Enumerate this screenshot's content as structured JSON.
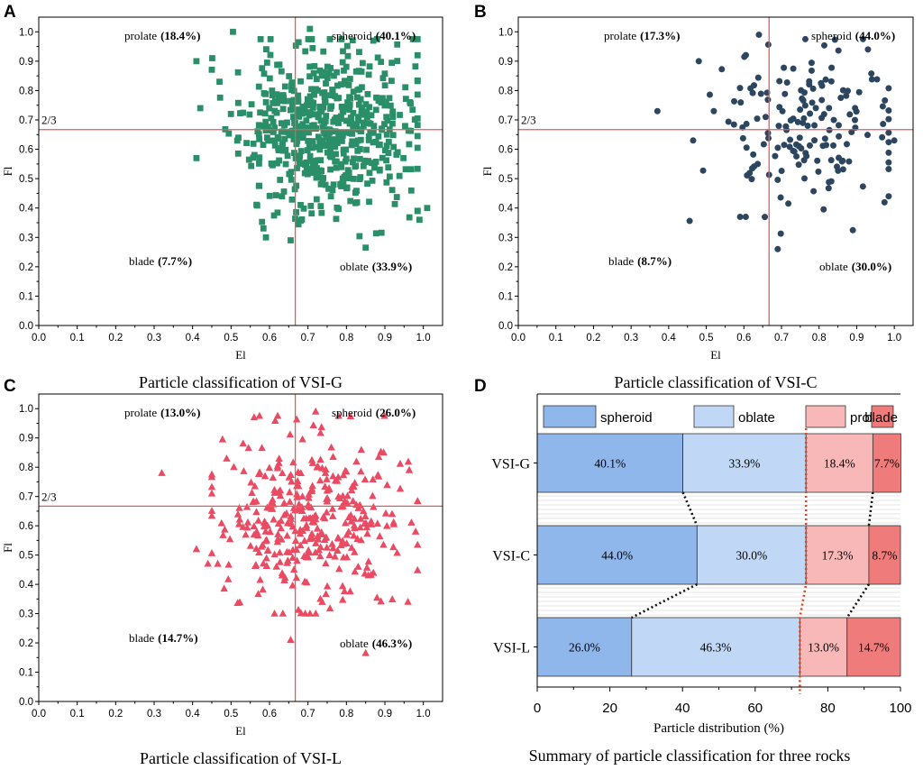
{
  "figure": {
    "panel_letters": [
      "A",
      "B",
      "C",
      "D"
    ],
    "colors": {
      "ref_line": "#e05d5d",
      "vsi_g": "#2a8f68",
      "vsi_c": "#2c4660",
      "vsi_l": "#ea4a62",
      "spheroid": "#8fb7ec",
      "oblate": "#c0d8f5",
      "prolate": "#f8b8b8",
      "blade": "#f07b7b",
      "connector_dark": "#111111",
      "connector_red": "#d84a2a"
    }
  },
  "chart_data": [
    {
      "type": "scatter",
      "panel": "A",
      "name": "VSI-G",
      "marker": "square",
      "caption": "Particle classification of VSI-G",
      "xlabel": "El",
      "ylabel": "Fl",
      "xlim": [
        0,
        1.05
      ],
      "ylim": [
        0,
        1.05
      ],
      "xticks": [
        "0.0",
        "0.1",
        "0.2",
        "0.3",
        "0.4",
        "0.5",
        "0.6",
        "0.7",
        "0.8",
        "0.9",
        "1.0"
      ],
      "yticks": [
        "0.0",
        "0.1",
        "0.2",
        "0.3",
        "0.4",
        "0.5",
        "0.6",
        "0.7",
        "0.8",
        "0.9",
        "1.0"
      ],
      "ref_x": 0.667,
      "ref_y": 0.667,
      "ref_label": "2/3",
      "quadrants": [
        {
          "name": "prolate",
          "pct": "(18.4%)"
        },
        {
          "name": "spheroid",
          "pct": "(40.1%)"
        },
        {
          "name": "blade",
          "pct": "(7.7%)"
        },
        {
          "name": "oblate",
          "pct": "(33.9%)"
        }
      ],
      "cloud": {
        "n": 580,
        "cx": 0.745,
        "cy": 0.67,
        "sx": 0.11,
        "sy": 0.14,
        "seed": 11
      },
      "points": [
        [
          0.41,
          0.9
        ],
        [
          0.42,
          0.74
        ],
        [
          0.41,
          0.57
        ],
        [
          0.505,
          1.0
        ],
        [
          0.705,
          1.01
        ],
        [
          0.87,
          0.97
        ],
        [
          1.01,
          0.4
        ],
        [
          0.655,
          0.29
        ],
        [
          0.85,
          0.265
        ],
        [
          0.99,
          0.36
        ],
        [
          0.47,
          0.83
        ]
      ]
    },
    {
      "type": "scatter",
      "panel": "B",
      "name": "VSI-C",
      "marker": "circle",
      "caption": "Particle classification of VSI-C",
      "xlabel": "El",
      "ylabel": "Fl",
      "xlim": [
        0,
        1.05
      ],
      "ylim": [
        0,
        1.05
      ],
      "xticks": [
        "0.0",
        "0.1",
        "0.2",
        "0.3",
        "0.4",
        "0.5",
        "0.6",
        "0.7",
        "0.8",
        "0.9",
        "1.0"
      ],
      "yticks": [
        "0.0",
        "0.1",
        "0.2",
        "0.3",
        "0.4",
        "0.5",
        "0.6",
        "0.7",
        "0.8",
        "0.9",
        "1.0"
      ],
      "ref_x": 0.667,
      "ref_y": 0.667,
      "ref_label": "2/3",
      "quadrants": [
        {
          "name": "prolate",
          "pct": "(17.3%)"
        },
        {
          "name": "spheroid",
          "pct": "(44.0%)"
        },
        {
          "name": "blade",
          "pct": "(8.7%)"
        },
        {
          "name": "oblate",
          "pct": "(30.0%)"
        }
      ],
      "cloud": {
        "n": 160,
        "cx": 0.765,
        "cy": 0.67,
        "sx": 0.12,
        "sy": 0.14,
        "seed": 23
      },
      "points": [
        [
          0.37,
          0.73
        ],
        [
          0.465,
          0.63
        ],
        [
          0.48,
          0.9
        ],
        [
          0.64,
          0.99
        ],
        [
          0.69,
          0.26
        ],
        [
          0.93,
          0.94
        ],
        [
          1.0,
          0.63
        ],
        [
          0.59,
          0.37
        ],
        [
          0.605,
          0.37
        ],
        [
          0.985,
          0.44
        ],
        [
          0.52,
          0.73
        ]
      ]
    },
    {
      "type": "scatter",
      "panel": "C",
      "name": "VSI-L",
      "marker": "triangle",
      "caption": "Particle classification of VSI-L",
      "xlabel": "El",
      "ylabel": "Fl",
      "xlim": [
        0,
        1.05
      ],
      "ylim": [
        0,
        1.05
      ],
      "xticks": [
        "0.0",
        "0.1",
        "0.2",
        "0.3",
        "0.4",
        "0.5",
        "0.6",
        "0.7",
        "0.8",
        "0.9",
        "1.0"
      ],
      "yticks": [
        "0.0",
        "0.1",
        "0.2",
        "0.3",
        "0.4",
        "0.5",
        "0.6",
        "0.7",
        "0.8",
        "0.9",
        "1.0"
      ],
      "ref_x": 0.667,
      "ref_y": 0.667,
      "ref_label": "2/3",
      "quadrants": [
        {
          "name": "prolate",
          "pct": "(13.0%)"
        },
        {
          "name": "spheroid",
          "pct": "(26.0%)"
        },
        {
          "name": "blade",
          "pct": "(14.7%)"
        },
        {
          "name": "oblate",
          "pct": "(46.3%)"
        }
      ],
      "cloud": {
        "n": 360,
        "cx": 0.715,
        "cy": 0.62,
        "sx": 0.12,
        "sy": 0.145,
        "seed": 37
      },
      "points": [
        [
          0.32,
          0.78
        ],
        [
          0.41,
          0.52
        ],
        [
          0.85,
          0.165
        ],
        [
          0.56,
          0.97
        ],
        [
          0.98,
          0.58
        ],
        [
          0.72,
          0.99
        ],
        [
          0.655,
          0.21
        ],
        [
          0.44,
          0.47
        ],
        [
          0.96,
          0.34
        ]
      ]
    },
    {
      "type": "bar",
      "orientation": "horizontal",
      "stacked": true,
      "panel": "D",
      "caption": "Summary of particle classification for three rocks",
      "xlabel": "Particle distribution (%)",
      "ylabel": "",
      "xlim": [
        0,
        100
      ],
      "xticks": [
        "0",
        "20",
        "40",
        "60",
        "80",
        "100"
      ],
      "categories": [
        "VSI-G",
        "VSI-C",
        "VSI-L"
      ],
      "series": [
        {
          "name": "spheroid",
          "values": [
            40.1,
            44.0,
            26.0
          ],
          "labels": [
            "40.1%",
            "44.0%",
            "26.0%"
          ]
        },
        {
          "name": "oblate",
          "values": [
            33.9,
            30.0,
            46.3
          ],
          "labels": [
            "33.9%",
            "30.0%",
            "46.3%"
          ]
        },
        {
          "name": "prolate",
          "values": [
            18.4,
            17.3,
            13.0
          ],
          "labels": [
            "18.4%",
            "17.3%",
            "13.0%"
          ]
        },
        {
          "name": "blade",
          "values": [
            7.7,
            8.7,
            14.7
          ],
          "labels": [
            "7.7%",
            "8.7%",
            "14.7%"
          ]
        }
      ],
      "legend": "top"
    }
  ]
}
